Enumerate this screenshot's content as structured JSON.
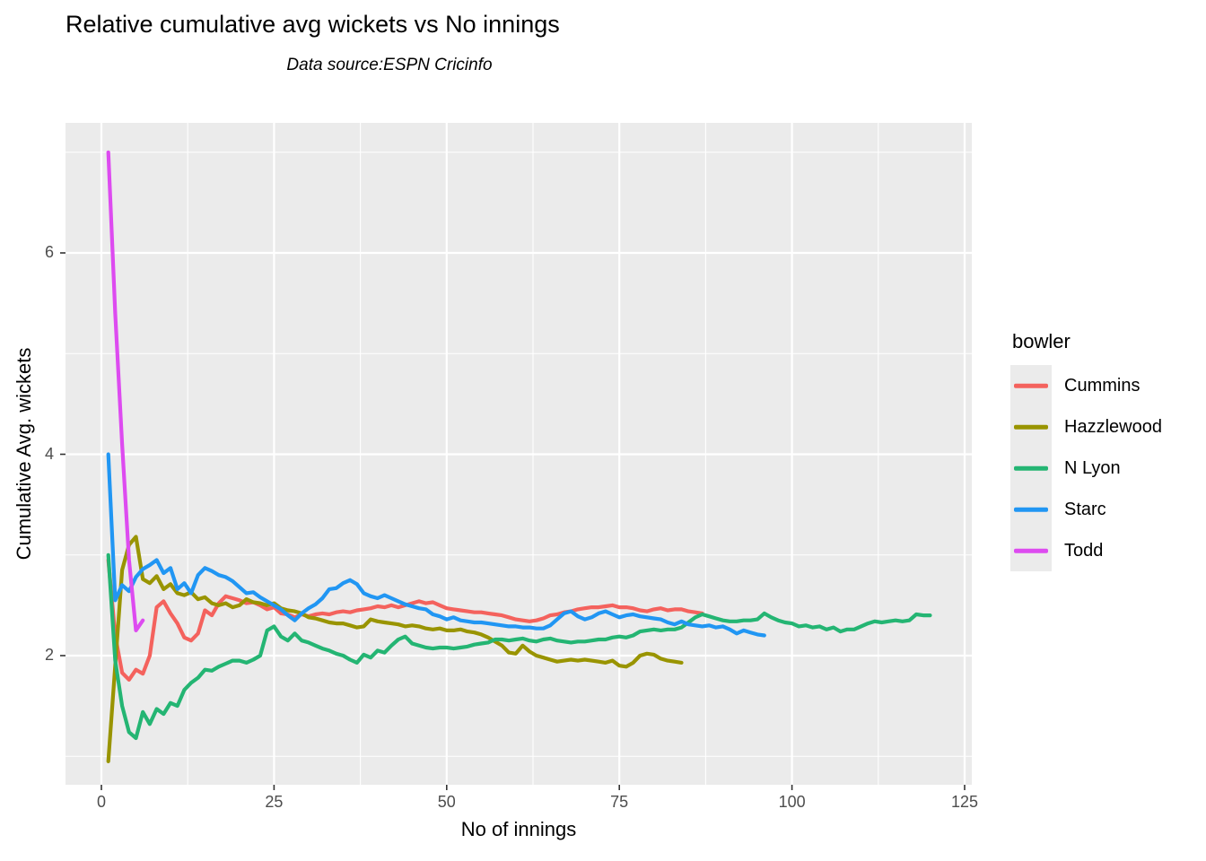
{
  "chart_data": {
    "type": "line",
    "title": "Relative cumulative avg wickets vs No innings",
    "subtitle": "Data source:ESPN Cricinfo",
    "xlabel": "No of innings",
    "ylabel": "Cumulative Avg. wickets",
    "legend_title": "bowler",
    "legend_position": "right",
    "grid": "on",
    "panel_bg": "#EBEBEB",
    "grid_color": "#FFFFFF",
    "tick_label_color": "#4d4d4d",
    "tick_mark_color": "#333333",
    "x_axis": {
      "ticks": [
        0,
        25,
        50,
        75,
        100,
        125
      ],
      "minor_ticks": [
        12.5,
        37.5,
        62.5,
        87.5,
        112.5
      ],
      "range": [
        -5,
        126
      ]
    },
    "y_axis": {
      "ticks": [
        2,
        4,
        6
      ],
      "minor_ticks": [
        1,
        3,
        5,
        7
      ],
      "range": [
        0.72,
        7.29
      ]
    },
    "series": [
      {
        "name": "Cummins",
        "color": "#F4625D",
        "x_start": 1,
        "values": [
          2.95,
          2.2,
          1.83,
          1.76,
          1.86,
          1.82,
          2.0,
          2.48,
          2.54,
          2.42,
          2.32,
          2.18,
          2.15,
          2.22,
          2.45,
          2.4,
          2.52,
          2.59,
          2.57,
          2.55,
          2.52,
          2.53,
          2.5,
          2.46,
          2.48,
          2.42,
          2.41,
          2.38,
          2.41,
          2.39,
          2.41,
          2.42,
          2.41,
          2.43,
          2.44,
          2.43,
          2.45,
          2.46,
          2.47,
          2.49,
          2.48,
          2.5,
          2.48,
          2.5,
          2.52,
          2.54,
          2.52,
          2.53,
          2.5,
          2.47,
          2.46,
          2.45,
          2.44,
          2.43,
          2.43,
          2.42,
          2.41,
          2.4,
          2.38,
          2.36,
          2.35,
          2.34,
          2.35,
          2.37,
          2.4,
          2.41,
          2.43,
          2.44,
          2.46,
          2.47,
          2.48,
          2.48,
          2.49,
          2.5,
          2.48,
          2.48,
          2.47,
          2.45,
          2.44,
          2.46,
          2.47,
          2.45,
          2.46,
          2.46,
          2.44,
          2.43,
          2.42
        ]
      },
      {
        "name": "Hazzlewood",
        "color": "#999400",
        "x_start": 1,
        "values": [
          0.95,
          1.9,
          2.85,
          3.1,
          3.18,
          2.76,
          2.72,
          2.79,
          2.66,
          2.71,
          2.62,
          2.6,
          2.63,
          2.56,
          2.58,
          2.52,
          2.5,
          2.52,
          2.48,
          2.5,
          2.56,
          2.53,
          2.52,
          2.5,
          2.52,
          2.47,
          2.45,
          2.44,
          2.42,
          2.38,
          2.37,
          2.35,
          2.33,
          2.32,
          2.32,
          2.3,
          2.28,
          2.29,
          2.36,
          2.34,
          2.33,
          2.32,
          2.31,
          2.29,
          2.3,
          2.29,
          2.27,
          2.26,
          2.27,
          2.25,
          2.25,
          2.26,
          2.24,
          2.23,
          2.21,
          2.18,
          2.14,
          2.1,
          2.03,
          2.02,
          2.1,
          2.04,
          2.0,
          1.98,
          1.96,
          1.94,
          1.95,
          1.96,
          1.95,
          1.96,
          1.95,
          1.94,
          1.93,
          1.95,
          1.9,
          1.89,
          1.93,
          2.0,
          2.02,
          2.01,
          1.97,
          1.95,
          1.94,
          1.93
        ]
      },
      {
        "name": "N Lyon",
        "color": "#24B573",
        "x_start": 1,
        "values": [
          3.0,
          1.95,
          1.5,
          1.24,
          1.18,
          1.44,
          1.32,
          1.47,
          1.42,
          1.53,
          1.5,
          1.66,
          1.73,
          1.78,
          1.86,
          1.85,
          1.89,
          1.92,
          1.95,
          1.95,
          1.93,
          1.96,
          2.0,
          2.25,
          2.29,
          2.19,
          2.15,
          2.22,
          2.15,
          2.13,
          2.1,
          2.07,
          2.05,
          2.02,
          2.0,
          1.96,
          1.93,
          2.01,
          1.98,
          2.05,
          2.03,
          2.1,
          2.16,
          2.19,
          2.12,
          2.1,
          2.08,
          2.07,
          2.08,
          2.08,
          2.07,
          2.08,
          2.09,
          2.11,
          2.12,
          2.13,
          2.16,
          2.16,
          2.15,
          2.16,
          2.17,
          2.15,
          2.14,
          2.16,
          2.17,
          2.15,
          2.14,
          2.13,
          2.14,
          2.14,
          2.15,
          2.16,
          2.16,
          2.18,
          2.19,
          2.18,
          2.2,
          2.24,
          2.25,
          2.26,
          2.25,
          2.26,
          2.26,
          2.28,
          2.33,
          2.38,
          2.41,
          2.39,
          2.37,
          2.35,
          2.34,
          2.34,
          2.35,
          2.35,
          2.36,
          2.42,
          2.38,
          2.35,
          2.33,
          2.32,
          2.29,
          2.3,
          2.28,
          2.29,
          2.26,
          2.28,
          2.24,
          2.26,
          2.26,
          2.29,
          2.32,
          2.34,
          2.33,
          2.34,
          2.35,
          2.34,
          2.35,
          2.41,
          2.4,
          2.4
        ]
      },
      {
        "name": "Starc",
        "color": "#2196F3",
        "x_start": 1,
        "values": [
          4.0,
          2.55,
          2.7,
          2.64,
          2.78,
          2.86,
          2.9,
          2.95,
          2.82,
          2.87,
          2.66,
          2.72,
          2.62,
          2.8,
          2.87,
          2.84,
          2.8,
          2.78,
          2.74,
          2.68,
          2.62,
          2.63,
          2.58,
          2.54,
          2.5,
          2.46,
          2.4,
          2.35,
          2.42,
          2.47,
          2.51,
          2.57,
          2.66,
          2.67,
          2.72,
          2.75,
          2.71,
          2.62,
          2.59,
          2.57,
          2.6,
          2.57,
          2.54,
          2.51,
          2.49,
          2.47,
          2.46,
          2.41,
          2.39,
          2.36,
          2.38,
          2.35,
          2.34,
          2.33,
          2.33,
          2.32,
          2.31,
          2.3,
          2.29,
          2.29,
          2.28,
          2.28,
          2.27,
          2.27,
          2.3,
          2.36,
          2.42,
          2.44,
          2.39,
          2.36,
          2.38,
          2.42,
          2.44,
          2.41,
          2.38,
          2.4,
          2.41,
          2.39,
          2.38,
          2.37,
          2.36,
          2.33,
          2.31,
          2.34,
          2.31,
          2.3,
          2.29,
          2.3,
          2.28,
          2.29,
          2.26,
          2.22,
          2.25,
          2.23,
          2.21,
          2.2
        ]
      },
      {
        "name": "Todd",
        "color": "#DD4BF0",
        "x_start": 1,
        "values": [
          7.0,
          5.4,
          4.1,
          2.95,
          2.25,
          2.35
        ]
      }
    ]
  }
}
